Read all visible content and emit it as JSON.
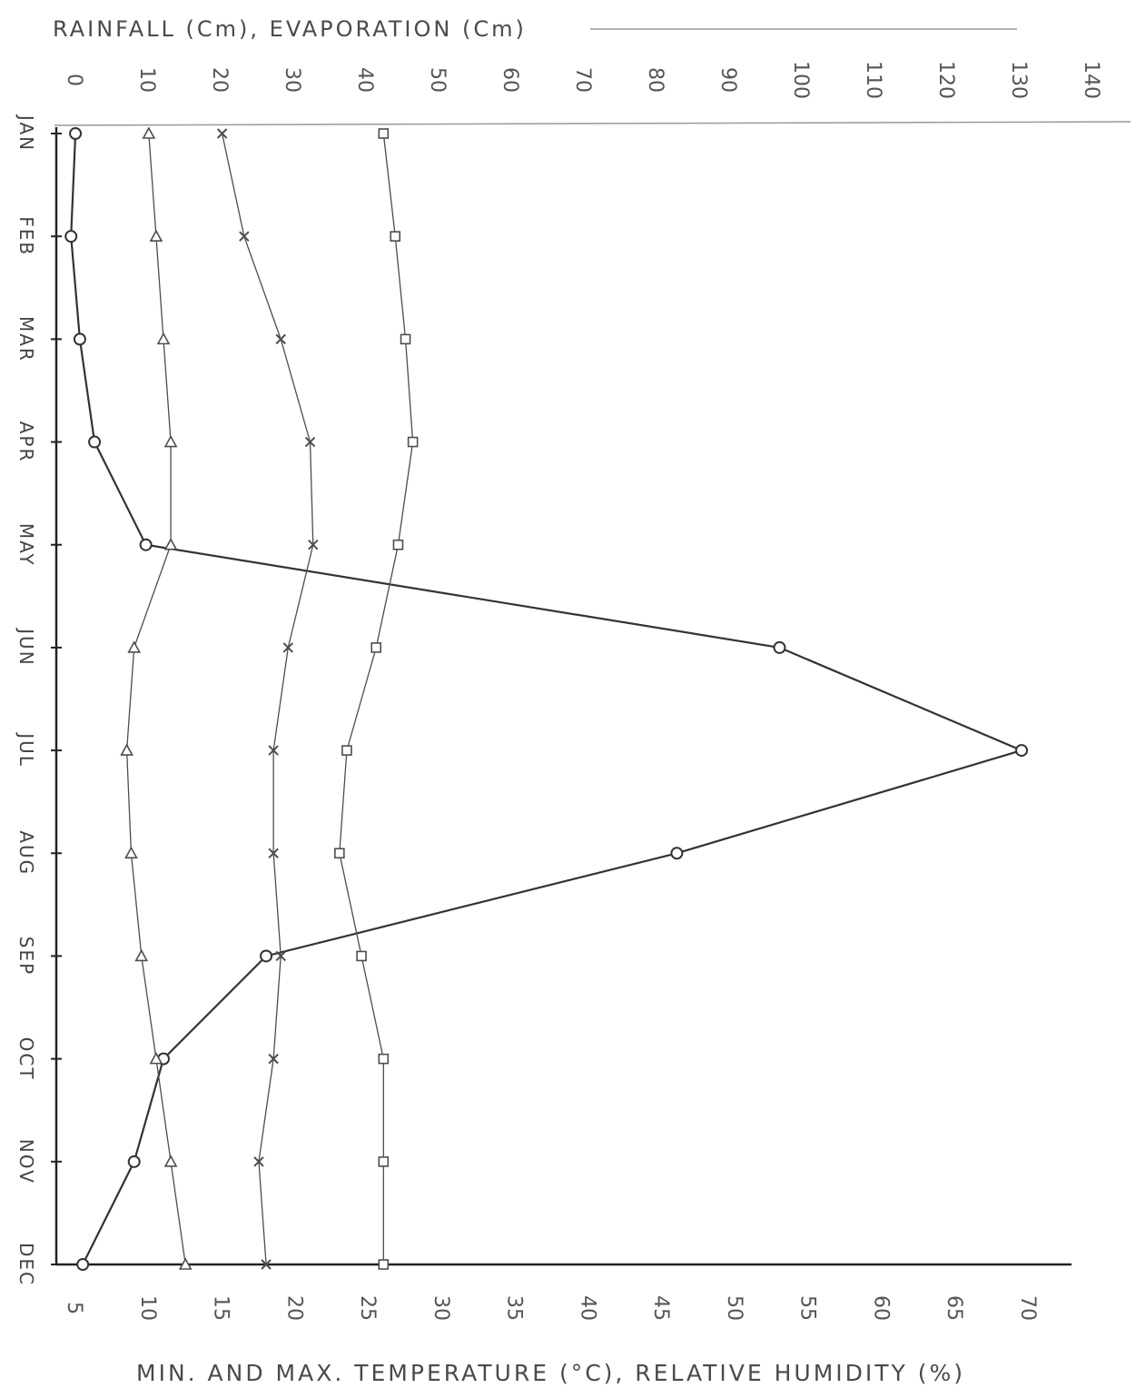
{
  "chart_data": {
    "type": "line",
    "top_axis_label": "RAINFALL (Cm), EVAPORATION (Cm)",
    "bottom_axis_label": "MIN. AND MAX. TEMPERATURE (°C), RELATIVE HUMIDITY (%)",
    "bottom_ticks": [
      "5",
      "10",
      "15",
      "20",
      "25",
      "30",
      "35",
      "40",
      "45",
      "50",
      "55",
      "60",
      "65",
      "70"
    ],
    "top_ticks": [
      "0",
      "10",
      "20",
      "30",
      "40",
      "50",
      "60",
      "70",
      "80",
      "90",
      "100",
      "110",
      "120",
      "130",
      "140"
    ],
    "categories": [
      "JAN",
      "FEB",
      "MAR",
      "APR",
      "MAY",
      "JUN",
      "JUL",
      "AUG",
      "SEP",
      "OCT",
      "NOV",
      "DEC"
    ],
    "value_axis_range": [
      5,
      70
    ],
    "series": [
      {
        "marker": "circle",
        "color": "#333333",
        "values": [
          5.5,
          5.2,
          5.8,
          6.8,
          10.3,
          53.5,
          70,
          46.5,
          18.5,
          11.5,
          9.5,
          6.0
        ]
      },
      {
        "marker": "triangle",
        "color": "#4d4d4d",
        "values": [
          10.5,
          11.0,
          11.5,
          12.0,
          12.0,
          9.5,
          9.0,
          9.3,
          10.0,
          11.0,
          12.0,
          13.0
        ]
      },
      {
        "marker": "cross",
        "color": "#4d4d4d",
        "values": [
          15.5,
          17.0,
          19.5,
          21.5,
          21.7,
          20.0,
          19.0,
          19.0,
          19.5,
          19.0,
          18.0,
          18.5
        ]
      },
      {
        "marker": "square",
        "color": "#4d4d4d",
        "values": [
          26.5,
          27.3,
          28.0,
          28.5,
          27.5,
          26.0,
          24.0,
          23.5,
          25.0,
          26.5,
          26.5,
          26.5
        ]
      }
    ],
    "grid": false
  }
}
